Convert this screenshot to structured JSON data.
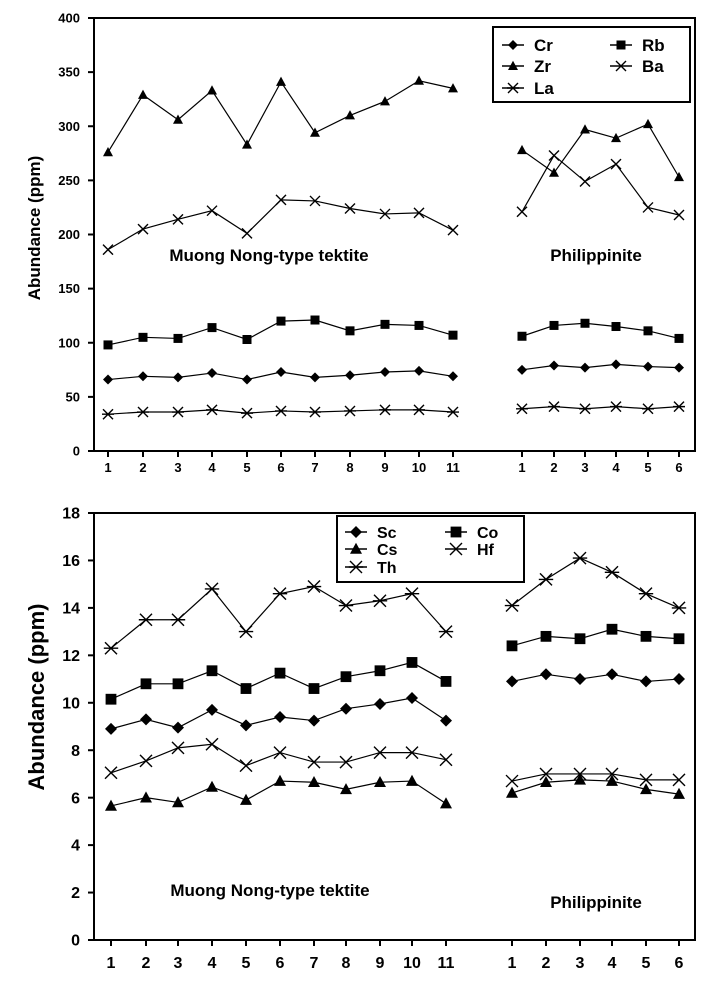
{
  "chart_data": [
    {
      "type": "line",
      "ylabel": "Abundance (ppm)",
      "xlabel": "",
      "ylim": [
        0,
        400
      ],
      "yticks": [
        0,
        50,
        100,
        150,
        200,
        250,
        300,
        350,
        400
      ],
      "grid": false,
      "legend_placement": "top-right",
      "groups": [
        {
          "label": "Muong Nong-type tektite",
          "x": [
            1,
            2,
            3,
            4,
            5,
            6,
            7,
            8,
            9,
            10,
            11
          ]
        },
        {
          "label": "Philippinite",
          "x": [
            1,
            2,
            3,
            4,
            5,
            6
          ]
        }
      ],
      "series": [
        {
          "name": "Cr",
          "marker": "diamond",
          "values": [
            [
              66,
              69,
              68,
              72,
              66,
              73,
              68,
              70,
              73,
              74,
              69
            ],
            [
              75,
              79,
              77,
              80,
              78,
              77
            ]
          ]
        },
        {
          "name": "Rb",
          "marker": "square",
          "values": [
            [
              98,
              105,
              104,
              114,
              103,
              120,
              121,
              111,
              117,
              116,
              107
            ],
            [
              106,
              116,
              118,
              115,
              111,
              104
            ]
          ]
        },
        {
          "name": "Zr",
          "marker": "triangle",
          "values": [
            [
              276,
              329,
              306,
              333,
              283,
              341,
              294,
              310,
              323,
              342,
              335
            ],
            [
              278,
              257,
              297,
              289,
              302,
              253
            ]
          ]
        },
        {
          "name": "Ba",
          "marker": "x",
          "values": [
            [
              186,
              205,
              214,
              222,
              201,
              232,
              231,
              224,
              219,
              220,
              204
            ],
            [
              221,
              273,
              249,
              265,
              225,
              218
            ]
          ]
        },
        {
          "name": "La",
          "marker": "asterisk",
          "values": [
            [
              34,
              36,
              36,
              38,
              35,
              37,
              36,
              37,
              38,
              38,
              36
            ],
            [
              39,
              41,
              39,
              41,
              39,
              41
            ]
          ]
        }
      ]
    },
    {
      "type": "line",
      "ylabel": "Abundance (ppm)",
      "xlabel": "",
      "ylim": [
        0,
        18
      ],
      "yticks": [
        0,
        2,
        4,
        6,
        8,
        10,
        12,
        14,
        16,
        18
      ],
      "grid": false,
      "legend_placement": "top-center",
      "groups": [
        {
          "label": "Muong Nong-type tektite",
          "x": [
            1,
            2,
            3,
            4,
            5,
            6,
            7,
            8,
            9,
            10,
            11
          ]
        },
        {
          "label": "Philippinite",
          "x": [
            1,
            2,
            3,
            4,
            5,
            6
          ]
        }
      ],
      "series": [
        {
          "name": "Sc",
          "marker": "diamond",
          "values": [
            [
              8.9,
              9.3,
              8.95,
              9.7,
              9.05,
              9.4,
              9.25,
              9.75,
              9.95,
              10.2,
              9.25
            ],
            [
              10.9,
              11.2,
              11.0,
              11.2,
              10.9,
              11.0
            ]
          ]
        },
        {
          "name": "Co",
          "marker": "square",
          "values": [
            [
              10.15,
              10.8,
              10.8,
              11.35,
              10.6,
              11.25,
              10.6,
              11.1,
              11.35,
              11.7,
              10.9
            ],
            [
              12.4,
              12.8,
              12.7,
              13.1,
              12.8,
              12.7
            ]
          ]
        },
        {
          "name": "Cs",
          "marker": "triangle",
          "values": [
            [
              5.65,
              6.0,
              5.8,
              6.45,
              5.9,
              6.7,
              6.65,
              6.35,
              6.65,
              6.7,
              5.75
            ],
            [
              6.2,
              6.65,
              6.75,
              6.7,
              6.35,
              6.15
            ]
          ]
        },
        {
          "name": "Hf",
          "marker": "x",
          "values": [
            [
              7.05,
              7.55,
              8.1,
              8.25,
              7.35,
              7.9,
              7.5,
              7.5,
              7.9,
              7.9,
              7.6
            ],
            [
              6.7,
              7.0,
              7.0,
              7.0,
              6.75,
              6.75
            ]
          ]
        },
        {
          "name": "Th",
          "marker": "asterisk",
          "values": [
            [
              12.3,
              13.5,
              13.5,
              14.8,
              13.0,
              14.6,
              14.9,
              14.1,
              14.3,
              14.6,
              13.0
            ],
            [
              14.1,
              15.2,
              16.1,
              15.5,
              14.6,
              14.0
            ]
          ]
        }
      ]
    }
  ]
}
